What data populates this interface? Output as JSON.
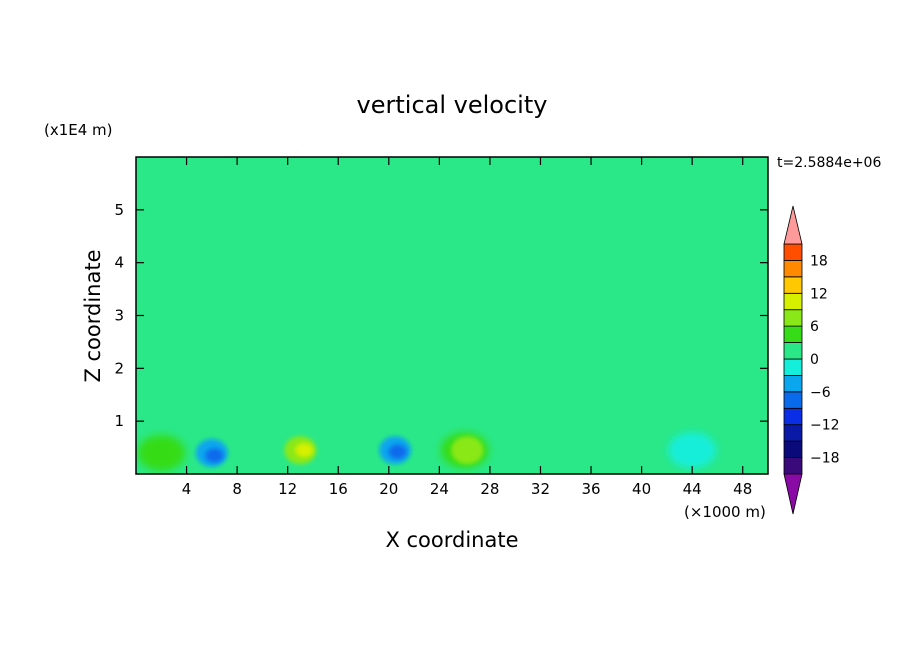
{
  "chart_data": {
    "type": "heatmap",
    "title": "vertical velocity",
    "xlabel": "X coordinate",
    "ylabel": "Z coordinate",
    "x_unit": "(×1000 m)",
    "y_unit": "(x1E4 m)",
    "time_label": "t=2.5884e+06",
    "xlim": [
      0,
      50
    ],
    "ylim": [
      0,
      6
    ],
    "x_ticks": [
      4,
      8,
      12,
      16,
      20,
      24,
      28,
      32,
      36,
      40,
      44,
      48
    ],
    "y_ticks": [
      1,
      2,
      3,
      4,
      5
    ],
    "colorbar": {
      "levels": [
        -21,
        -18,
        -15,
        -12,
        -9,
        -6,
        -3,
        0,
        3,
        6,
        9,
        12,
        15,
        18,
        21
      ],
      "colors": [
        "#3a0a7a",
        "#0a0a7a",
        "#0a1aa6",
        "#0a2ee6",
        "#0a6aec",
        "#0aa6ee",
        "#15eeda",
        "#2ae888",
        "#36dc18",
        "#8ae818",
        "#d6f000",
        "#ffc800",
        "#ff8a00",
        "#ff4e00",
        "#ff1e00"
      ],
      "under_color": "#8a0aa6",
      "over_color": "#ff9a9a",
      "tick_values": [
        18,
        12,
        6,
        0,
        -6,
        -12,
        -18
      ],
      "tick_labels": [
        "18",
        "12",
        "6",
        "0",
        "−6",
        "−12",
        "−18"
      ]
    },
    "features": [
      {
        "x": 2.0,
        "z": 0.4,
        "value": 3
      },
      {
        "x": 6.0,
        "z": 0.4,
        "value": -6
      },
      {
        "x": 6.2,
        "z": 0.35,
        "value": -9
      },
      {
        "x": 13.0,
        "z": 0.45,
        "value": 6
      },
      {
        "x": 13.3,
        "z": 0.45,
        "value": 9
      },
      {
        "x": 20.5,
        "z": 0.45,
        "value": -6
      },
      {
        "x": 20.7,
        "z": 0.42,
        "value": -9
      },
      {
        "x": 26.0,
        "z": 0.45,
        "value": 3
      },
      {
        "x": 26.2,
        "z": 0.45,
        "value": 6
      },
      {
        "x": 44.0,
        "z": 0.45,
        "value": -3
      }
    ]
  }
}
